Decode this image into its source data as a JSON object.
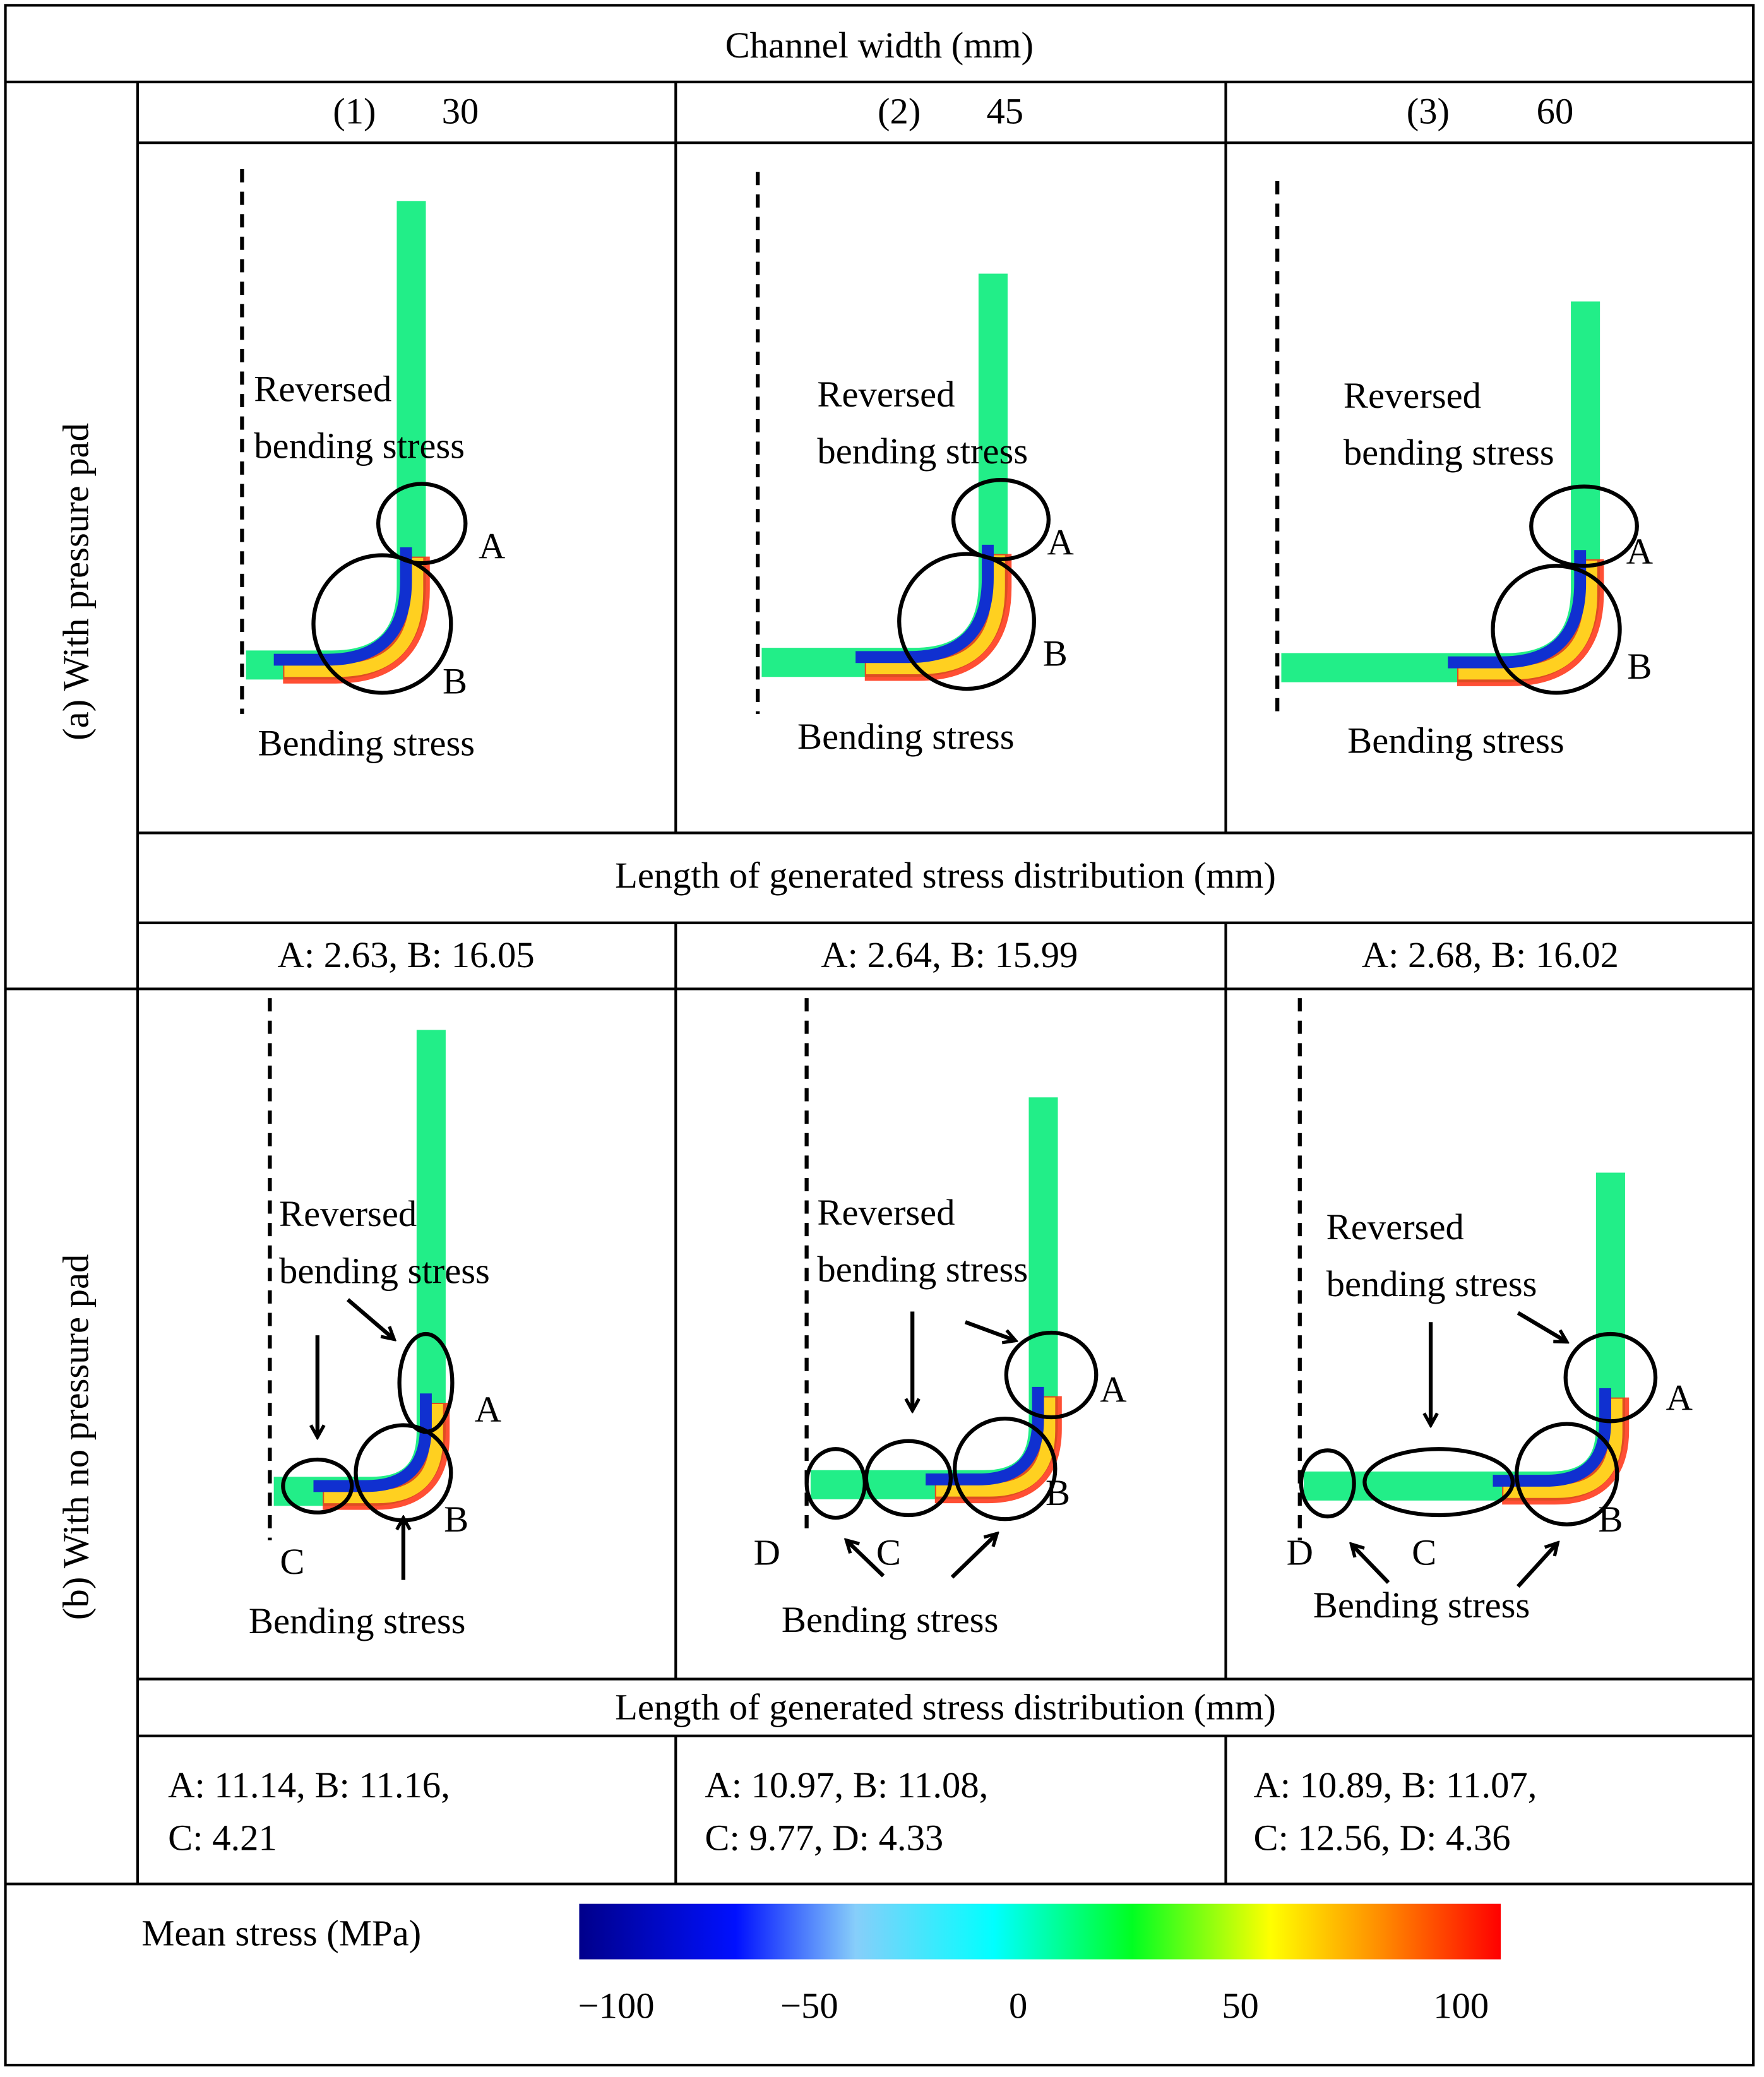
{
  "header": {
    "title": "Channel width (mm)"
  },
  "columns": [
    {
      "index": "(1)",
      "width": "30"
    },
    {
      "index": "(2)",
      "width": "45"
    },
    {
      "index": "(3)",
      "width": "60"
    }
  ],
  "rows": [
    {
      "label": "(a) With pressure pad",
      "length_title": "Length of generated stress distribution (mm)",
      "panels": [
        {
          "annotations": [
            "Reversed",
            "bending stress",
            "Bending stress"
          ],
          "markers": [
            "A",
            "B"
          ],
          "lengths": [
            "A: 2.63, B: 16.05"
          ]
        },
        {
          "annotations": [
            "Reversed",
            "bending stress",
            "Bending stress"
          ],
          "markers": [
            "A",
            "B"
          ],
          "lengths": [
            "A: 2.64, B: 15.99"
          ]
        },
        {
          "annotations": [
            "Reversed",
            "bending stress",
            "Bending stress"
          ],
          "markers": [
            "A",
            "B"
          ],
          "lengths": [
            "A: 2.68, B: 16.02"
          ]
        }
      ]
    },
    {
      "label": "(b) With no pressure pad",
      "length_title": "Length of generated stress distribution (mm)",
      "panels": [
        {
          "annotations": [
            "Reversed",
            "bending stress",
            "Bending stress"
          ],
          "markers": [
            "A",
            "B",
            "C"
          ],
          "lengths": [
            "A: 11.14, B: 11.16,",
            "C: 4.21"
          ]
        },
        {
          "annotations": [
            "Reversed",
            "bending stress",
            "Bending stress"
          ],
          "markers": [
            "A",
            "B",
            "C",
            "D"
          ],
          "lengths": [
            "A: 10.97, B: 11.08,",
            "C: 9.77, D: 4.33"
          ]
        },
        {
          "annotations": [
            "Reversed",
            "bending stress",
            "Bending stress"
          ],
          "markers": [
            "A",
            "B",
            "C",
            "D"
          ],
          "lengths": [
            "A: 10.89, B: 11.07,",
            "C: 12.56, D: 4.36"
          ]
        }
      ]
    }
  ],
  "legend": {
    "label": "Mean stress (MPa)",
    "tick_labels": [
      "−100",
      "−50",
      "0",
      "50",
      "100"
    ]
  }
}
